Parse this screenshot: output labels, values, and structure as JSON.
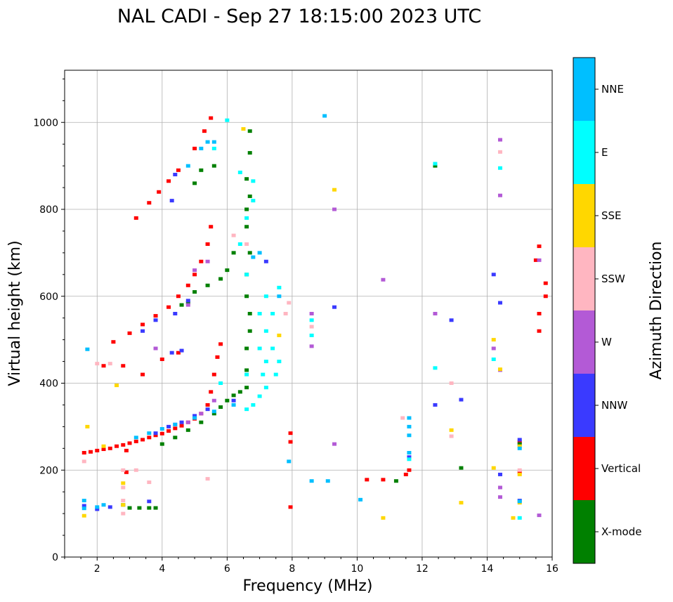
{
  "chart_data": {
    "type": "scatter",
    "title": "NAL CADI - Sep 27 18:15:00 2023 UTC",
    "xlabel": "Frequency (MHz)",
    "ylabel": "Virtual height (km)",
    "xlim": [
      1,
      16
    ],
    "ylim": [
      0,
      1120
    ],
    "xticks": [
      2,
      4,
      6,
      8,
      10,
      12,
      14,
      16
    ],
    "yticks": [
      0,
      200,
      400,
      600,
      800,
      1000
    ],
    "grid": true,
    "colorbar": {
      "label": "Azimuth Direction",
      "categories": [
        {
          "name": "X-mode",
          "color": "#008000"
        },
        {
          "name": "Vertical",
          "color": "#ff0000"
        },
        {
          "name": "NNW",
          "color": "#3a3aff"
        },
        {
          "name": "W",
          "color": "#b35ad6"
        },
        {
          "name": "SSW",
          "color": "#ffb6c1"
        },
        {
          "name": "SSE",
          "color": "#ffd700"
        },
        {
          "name": "E",
          "color": "#00ffff"
        },
        {
          "name": "NNE",
          "color": "#00bfff"
        }
      ]
    },
    "series": [
      {
        "name": "Vertical",
        "points": [
          [
            1.6,
            240
          ],
          [
            1.8,
            242
          ],
          [
            2.0,
            245
          ],
          [
            2.2,
            248
          ],
          [
            2.4,
            250
          ],
          [
            2.6,
            255
          ],
          [
            2.8,
            258
          ],
          [
            3.0,
            262
          ],
          [
            3.2,
            266
          ],
          [
            3.4,
            270
          ],
          [
            3.6,
            275
          ],
          [
            3.8,
            280
          ],
          [
            4.0,
            284
          ],
          [
            4.2,
            290
          ],
          [
            4.4,
            296
          ],
          [
            4.6,
            302
          ],
          [
            4.8,
            310
          ],
          [
            5.0,
            318
          ],
          [
            5.2,
            330
          ],
          [
            5.4,
            350
          ],
          [
            5.5,
            380
          ],
          [
            5.6,
            420
          ],
          [
            5.7,
            460
          ],
          [
            5.8,
            490
          ],
          [
            2.5,
            495
          ],
          [
            3.0,
            515
          ],
          [
            3.4,
            535
          ],
          [
            3.8,
            555
          ],
          [
            4.2,
            575
          ],
          [
            4.5,
            600
          ],
          [
            4.8,
            625
          ],
          [
            5.0,
            650
          ],
          [
            5.2,
            680
          ],
          [
            5.4,
            720
          ],
          [
            5.5,
            760
          ],
          [
            3.2,
            780
          ],
          [
            3.6,
            815
          ],
          [
            3.9,
            840
          ],
          [
            4.2,
            865
          ],
          [
            4.5,
            890
          ],
          [
            5.0,
            940
          ],
          [
            5.3,
            980
          ],
          [
            5.5,
            1010
          ],
          [
            2.2,
            440
          ],
          [
            2.8,
            440
          ],
          [
            3.4,
            420
          ],
          [
            4.0,
            455
          ],
          [
            4.5,
            470
          ],
          [
            10.3,
            178
          ],
          [
            10.8,
            178
          ],
          [
            11.5,
            190
          ],
          [
            11.6,
            200
          ],
          [
            15.6,
            560
          ],
          [
            15.6,
            520
          ],
          [
            15.8,
            600
          ],
          [
            15.8,
            630
          ],
          [
            15.6,
            715
          ],
          [
            15.5,
            683
          ],
          [
            15.0,
            195
          ],
          [
            15.0,
            265
          ],
          [
            7.95,
            265
          ],
          [
            7.95,
            115
          ],
          [
            7.95,
            285
          ],
          [
            2.9,
            195
          ],
          [
            2.9,
            245
          ]
        ]
      },
      {
        "name": "X-mode",
        "points": [
          [
            3.0,
            113
          ],
          [
            3.3,
            113
          ],
          [
            3.6,
            113
          ],
          [
            3.8,
            113
          ],
          [
            2.8,
            120
          ],
          [
            4.0,
            260
          ],
          [
            4.4,
            275
          ],
          [
            4.8,
            292
          ],
          [
            5.2,
            310
          ],
          [
            5.6,
            330
          ],
          [
            5.8,
            345
          ],
          [
            6.0,
            360
          ],
          [
            6.2,
            372
          ],
          [
            6.4,
            380
          ],
          [
            6.6,
            390
          ],
          [
            6.6,
            430
          ],
          [
            6.6,
            480
          ],
          [
            6.7,
            520
          ],
          [
            6.7,
            560
          ],
          [
            6.6,
            600
          ],
          [
            6.6,
            650
          ],
          [
            6.7,
            700
          ],
          [
            6.6,
            760
          ],
          [
            6.6,
            800
          ],
          [
            6.7,
            830
          ],
          [
            6.6,
            870
          ],
          [
            6.7,
            930
          ],
          [
            6.7,
            980
          ],
          [
            5.0,
            610
          ],
          [
            5.4,
            625
          ],
          [
            5.8,
            640
          ],
          [
            6.0,
            660
          ],
          [
            6.2,
            700
          ],
          [
            4.8,
            585
          ],
          [
            4.6,
            580
          ],
          [
            5.2,
            890
          ],
          [
            5.6,
            900
          ],
          [
            5.0,
            860
          ],
          [
            13.2,
            205
          ],
          [
            11.2,
            175
          ],
          [
            15.0,
            260
          ],
          [
            12.4,
            900
          ]
        ]
      },
      {
        "name": "NNW",
        "points": [
          [
            1.6,
            118
          ],
          [
            2.0,
            110
          ],
          [
            2.4,
            115
          ],
          [
            3.6,
            128
          ],
          [
            3.8,
            285
          ],
          [
            4.2,
            300
          ],
          [
            4.6,
            310
          ],
          [
            5.0,
            325
          ],
          [
            5.4,
            340
          ],
          [
            4.3,
            470
          ],
          [
            4.6,
            475
          ],
          [
            4.4,
            560
          ],
          [
            4.8,
            590
          ],
          [
            3.4,
            520
          ],
          [
            3.8,
            545
          ],
          [
            4.4,
            880
          ],
          [
            4.3,
            820
          ],
          [
            6.2,
            360
          ],
          [
            9.3,
            575
          ],
          [
            12.4,
            350
          ],
          [
            12.9,
            545
          ],
          [
            13.2,
            362
          ],
          [
            14.2,
            650
          ],
          [
            14.4,
            585
          ],
          [
            14.4,
            190
          ],
          [
            15.0,
            130
          ],
          [
            15.0,
            270
          ],
          [
            11.6,
            230
          ],
          [
            7.2,
            680
          ]
        ]
      },
      {
        "name": "W",
        "points": [
          [
            4.4,
            305
          ],
          [
            4.8,
            310
          ],
          [
            5.2,
            330
          ],
          [
            5.6,
            360
          ],
          [
            5.0,
            660
          ],
          [
            5.4,
            680
          ],
          [
            4.8,
            580
          ],
          [
            8.6,
            485
          ],
          [
            8.6,
            560
          ],
          [
            9.3,
            800
          ],
          [
            10.8,
            638
          ],
          [
            12.4,
            560
          ],
          [
            14.4,
            960
          ],
          [
            14.4,
            832
          ],
          [
            14.2,
            480
          ],
          [
            14.4,
            430
          ],
          [
            14.4,
            160
          ],
          [
            14.4,
            138
          ],
          [
            15.6,
            683
          ],
          [
            15.6,
            96
          ],
          [
            3.8,
            480
          ],
          [
            9.3,
            260
          ]
        ]
      },
      {
        "name": "SSW",
        "points": [
          [
            2.8,
            200
          ],
          [
            2.8,
            160
          ],
          [
            2.8,
            100
          ],
          [
            2.8,
            130
          ],
          [
            3.2,
            200
          ],
          [
            3.6,
            172
          ],
          [
            5.4,
            180
          ],
          [
            12.9,
            400
          ],
          [
            12.9,
            278
          ],
          [
            14.4,
            932
          ],
          [
            15.0,
            200
          ],
          [
            7.8,
            560
          ],
          [
            7.9,
            585
          ],
          [
            6.2,
            740
          ],
          [
            6.6,
            720
          ],
          [
            1.6,
            220
          ],
          [
            2.4,
            445
          ],
          [
            2.0,
            445
          ],
          [
            11.4,
            320
          ],
          [
            8.6,
            530
          ]
        ]
      },
      {
        "name": "SSE",
        "points": [
          [
            1.6,
            95
          ],
          [
            2.8,
            170
          ],
          [
            2.8,
            120
          ],
          [
            9.3,
            845
          ],
          [
            12.9,
            292
          ],
          [
            13.2,
            125
          ],
          [
            10.8,
            90
          ],
          [
            14.2,
            205
          ],
          [
            14.2,
            500
          ],
          [
            14.4,
            432
          ],
          [
            15.0,
            125
          ],
          [
            15.0,
            255
          ],
          [
            14.8,
            90
          ],
          [
            15.0,
            190
          ],
          [
            6.5,
            985
          ],
          [
            7.6,
            510
          ],
          [
            2.6,
            395
          ],
          [
            2.2,
            255
          ],
          [
            1.7,
            300
          ]
        ]
      },
      {
        "name": "E",
        "points": [
          [
            6.6,
            340
          ],
          [
            6.8,
            350
          ],
          [
            7.0,
            370
          ],
          [
            7.2,
            390
          ],
          [
            7.1,
            420
          ],
          [
            7.2,
            450
          ],
          [
            7.0,
            480
          ],
          [
            7.2,
            520
          ],
          [
            7.0,
            560
          ],
          [
            7.2,
            600
          ],
          [
            6.6,
            650
          ],
          [
            6.4,
            720
          ],
          [
            6.6,
            780
          ],
          [
            6.8,
            820
          ],
          [
            6.8,
            865
          ],
          [
            6.4,
            885
          ],
          [
            7.6,
            620
          ],
          [
            7.4,
            480
          ],
          [
            7.6,
            450
          ],
          [
            7.5,
            420
          ],
          [
            8.6,
            545
          ],
          [
            8.6,
            510
          ],
          [
            12.4,
            435
          ],
          [
            12.4,
            905
          ],
          [
            14.4,
            895
          ],
          [
            14.2,
            455
          ],
          [
            15.0,
            90
          ],
          [
            11.6,
            225
          ],
          [
            5.8,
            400
          ],
          [
            5.6,
            940
          ],
          [
            6.0,
            1005
          ],
          [
            6.6,
            420
          ],
          [
            7.4,
            560
          ]
        ]
      },
      {
        "name": "NNE",
        "points": [
          [
            1.6,
            130
          ],
          [
            1.6,
            112
          ],
          [
            2.0,
            115
          ],
          [
            2.2,
            120
          ],
          [
            8.6,
            175
          ],
          [
            9.1,
            175
          ],
          [
            10.1,
            132
          ],
          [
            11.6,
            300
          ],
          [
            11.6,
            280
          ],
          [
            11.6,
            240
          ],
          [
            11.6,
            320
          ],
          [
            3.2,
            275
          ],
          [
            3.6,
            285
          ],
          [
            4.0,
            295
          ],
          [
            4.4,
            305
          ],
          [
            5.0,
            320
          ],
          [
            5.6,
            335
          ],
          [
            6.2,
            350
          ],
          [
            5.2,
            940
          ],
          [
            5.4,
            955
          ],
          [
            5.6,
            955
          ],
          [
            4.8,
            900
          ],
          [
            7.9,
            220
          ],
          [
            15.0,
            128
          ],
          [
            15.0,
            250
          ],
          [
            7.6,
            600
          ],
          [
            1.7,
            478
          ],
          [
            9.0,
            1015
          ],
          [
            6.8,
            690
          ],
          [
            7.0,
            700
          ]
        ]
      }
    ]
  }
}
